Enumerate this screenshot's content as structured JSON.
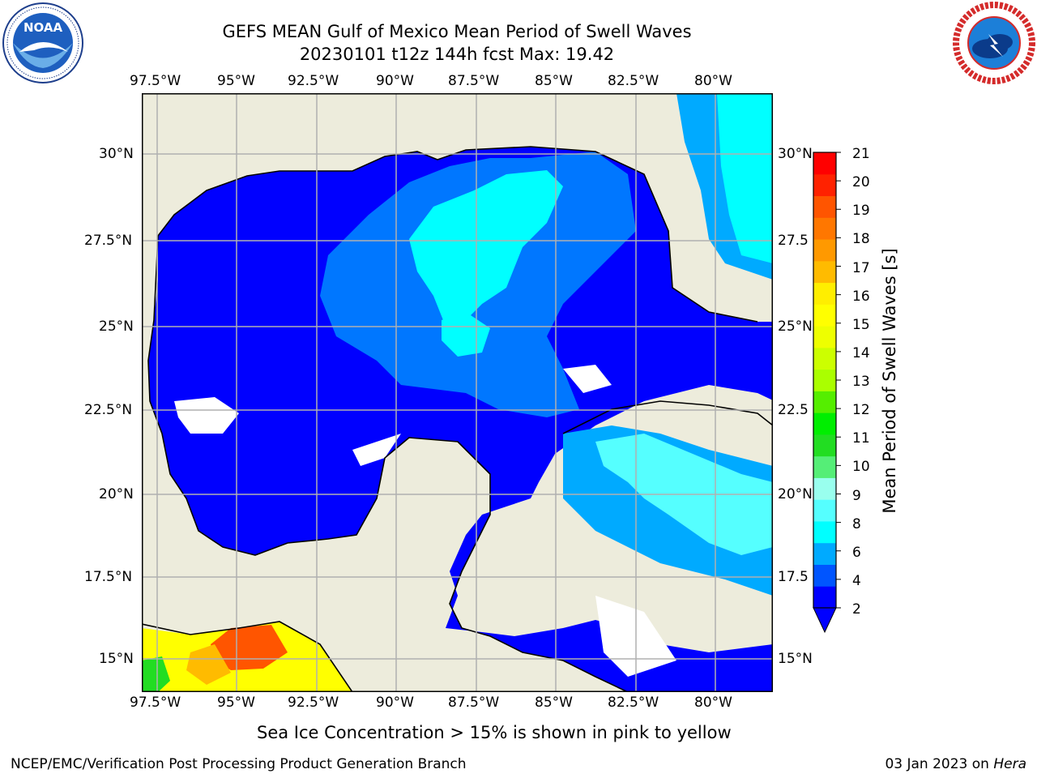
{
  "header": {
    "title_line1": "GEFS MEAN Gulf of Mexico Mean Period of Swell Waves",
    "title_line2": "20230101 t12z 144h fcst   Max: 19.42"
  },
  "logos": {
    "left": "noaa-logo",
    "right": "nws-logo"
  },
  "map": {
    "lon_labels": [
      "97.5°W",
      "95°W",
      "92.5°W",
      "90°W",
      "87.5°W",
      "85°W",
      "82.5°W",
      "80°W"
    ],
    "lat_labels_left": [
      "30°N",
      "27.5°N",
      "25°N",
      "22.5°N",
      "20°N",
      "17.5°N",
      "15°N"
    ],
    "lat_labels_right": [
      "30°N",
      "27.5",
      "25°N",
      "22.5",
      "20°N",
      "17.5",
      "15°N"
    ]
  },
  "colorbar": {
    "title": "Mean Period of Swell Waves [s]",
    "ticks": [
      "21",
      "20",
      "19",
      "18",
      "17",
      "16",
      "15",
      "14",
      "13",
      "12",
      "11",
      "10",
      "9",
      "8",
      "6",
      "4",
      "2"
    ],
    "colors": [
      "#0000ff",
      "#0055ff",
      "#00aaff",
      "#00ffff",
      "#55ffff",
      "#99ffee",
      "#55ee77",
      "#22dd22",
      "#00ee00",
      "#55ee00",
      "#aaff00",
      "#ccff00",
      "#eeff00",
      "#ffff00",
      "#ffee00",
      "#ffbb00",
      "#ff9900",
      "#ff7700",
      "#ff5500",
      "#ff2200",
      "#ff0000"
    ]
  },
  "footer": {
    "note": "Sea Ice Concentration > 15% is shown in pink to yellow",
    "credit_left": "NCEP/EMC/Verification Post Processing Product Generation Branch",
    "date": "03 Jan 2023 on",
    "host": "Hera"
  }
}
